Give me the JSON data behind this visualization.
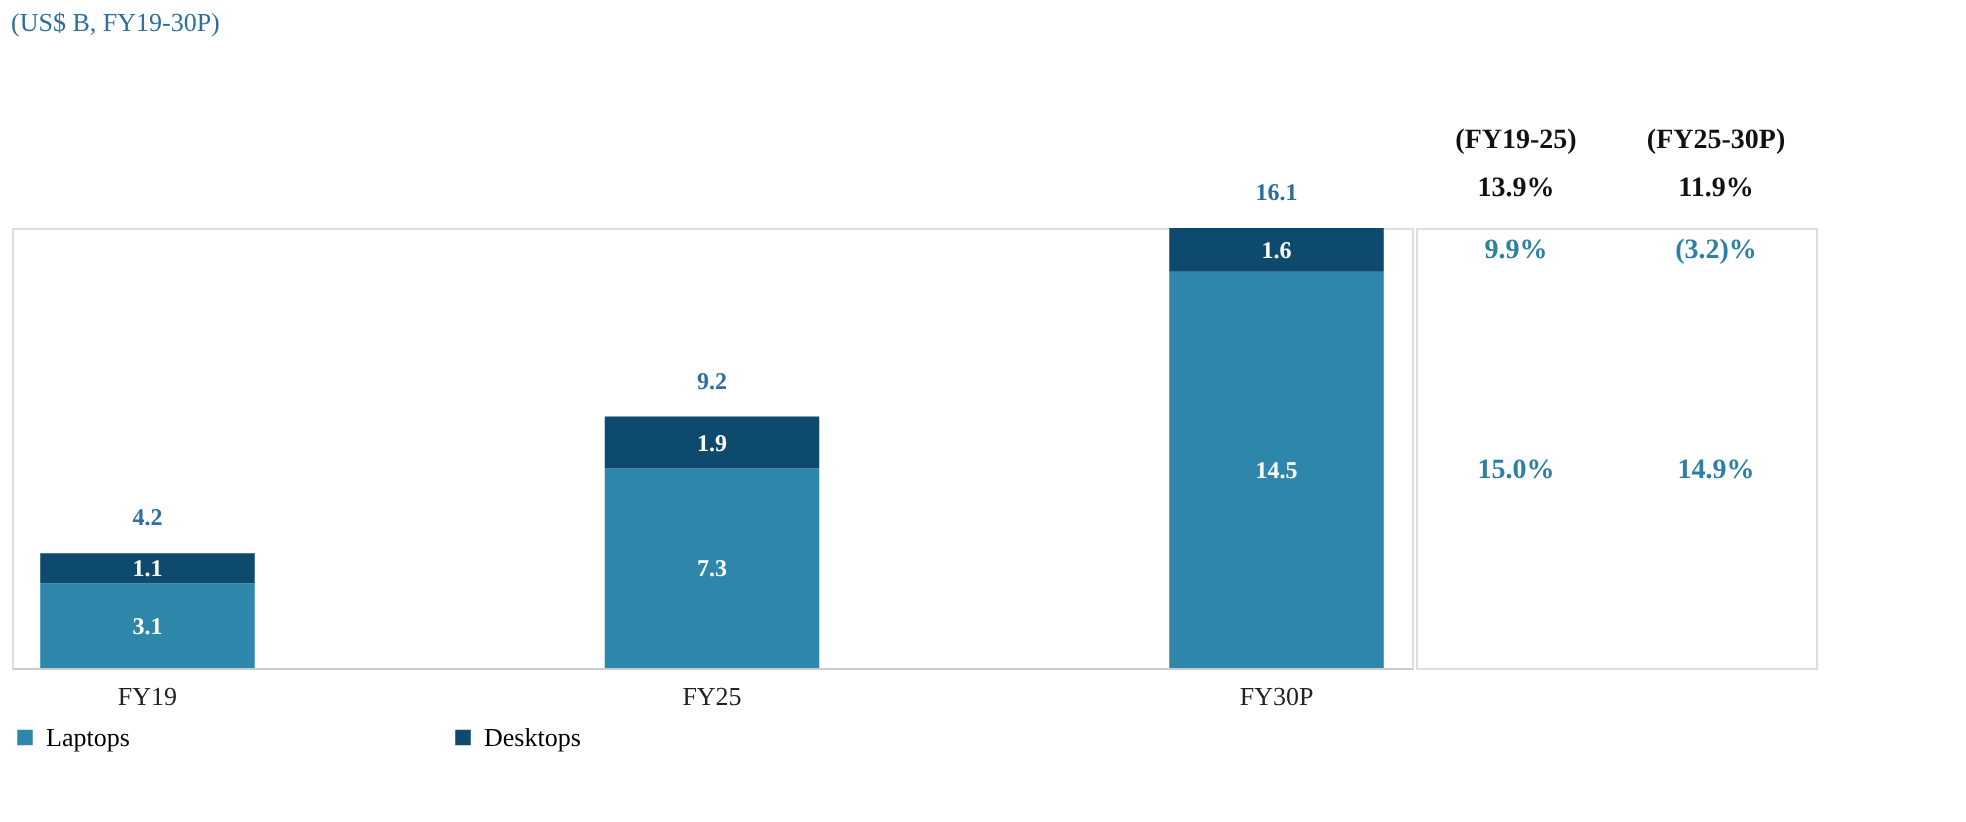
{
  "chart_data": {
    "type": "bar",
    "subtitle": "(US$ B, FY19-30P)",
    "stacked": true,
    "categories": [
      "FY19",
      "FY25",
      "FY30P"
    ],
    "series": [
      {
        "name": "Laptops",
        "color": "#2e86ab",
        "values": [
          3.1,
          7.3,
          14.5
        ]
      },
      {
        "name": "Desktops",
        "color": "#0d4a6e",
        "values": [
          1.1,
          1.9,
          1.6
        ]
      }
    ],
    "data_labels": true,
    "totals": [
      "4.2",
      "9.2",
      "16.1"
    ],
    "annotations": [
      "(FY19-25)",
      "(FY25-30P)",
      "13.9%",
      "11.9%",
      "9.9%",
      "(3.2)%",
      "15.0%",
      "14.9%"
    ],
    "legend": "bottom",
    "grid": false
  }
}
